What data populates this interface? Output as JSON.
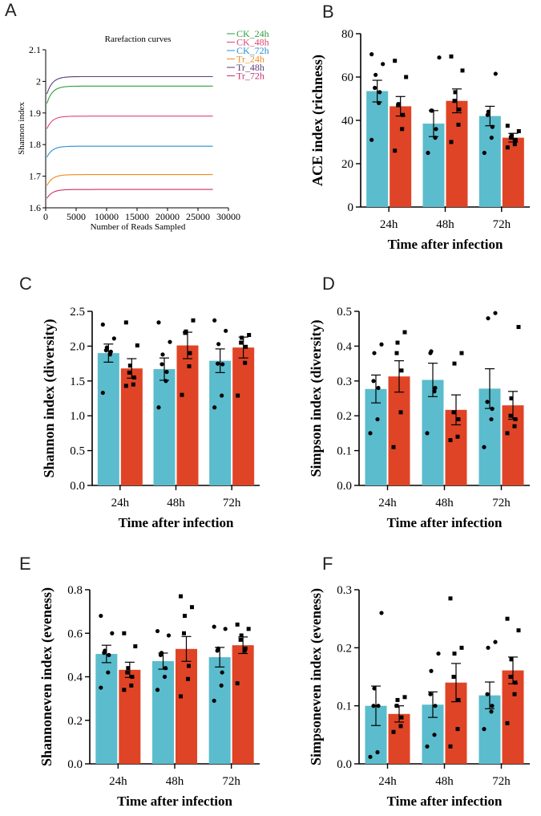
{
  "colors": {
    "ck": "#5bbccd",
    "tr": "#e04426",
    "axis": "#000000"
  },
  "chart_data": [
    {
      "panel": "A",
      "type": "line",
      "title": "Rarefaction curves",
      "xlabel": "Number of Reads Sampled",
      "ylabel": "Shannon index",
      "xlim": [
        0,
        30000
      ],
      "ylim": [
        1.6,
        2.1
      ],
      "xticks": [
        "0",
        "5000",
        "10000",
        "15000",
        "20000",
        "25000",
        "30000"
      ],
      "xtick_values": [
        0,
        5000,
        10000,
        15000,
        20000,
        25000,
        30000
      ],
      "yticks": [
        "1.6",
        "1.7",
        "1.8",
        "1.9",
        "2",
        "2.1"
      ],
      "ytick_values": [
        1.6,
        1.7,
        1.8,
        1.9,
        2.0,
        2.1
      ],
      "series": [
        {
          "name": "CK_24h",
          "color": "#2e9e3e",
          "start": 1.93,
          "plateau": 1.985,
          "x_end": 27500
        },
        {
          "name": "CK_48h",
          "color": "#e0436e",
          "start": 1.85,
          "plateau": 1.89,
          "x_end": 27500
        },
        {
          "name": "CK_72h",
          "color": "#2a8fd1",
          "start": 1.76,
          "plateau": 1.795,
          "x_end": 27500
        },
        {
          "name": "Tr_24h",
          "color": "#f08a1c",
          "start": 1.67,
          "plateau": 1.705,
          "x_end": 27500
        },
        {
          "name": "Tr_48h",
          "color": "#5a3e7a",
          "start": 1.96,
          "plateau": 2.015,
          "x_end": 27500
        },
        {
          "name": "Tr_72h",
          "color": "#c9306b",
          "start": 1.63,
          "plateau": 1.658,
          "x_end": 27500
        }
      ]
    },
    {
      "panel": "B",
      "type": "bar",
      "xlabel": "Time after infection",
      "ylabel": "ACE index (richness)",
      "categories": [
        "24h",
        "48h",
        "72h"
      ],
      "ylim": [
        0,
        80
      ],
      "yticks": [
        "0",
        "20",
        "40",
        "60",
        "80"
      ],
      "ytick_values": [
        0,
        20,
        40,
        60,
        80
      ],
      "series": [
        {
          "name": "CK",
          "values": [
            53.5,
            38.5,
            42
          ],
          "errors": [
            5,
            6,
            4.5
          ],
          "points": [
            [
              31,
              48,
              53,
              55,
              61,
              66,
              70.5
            ],
            [
              25,
              32,
              36,
              44.5,
              44.5,
              69
            ],
            [
              25,
              32,
              37,
              42.5,
              44,
              61.5
            ]
          ]
        },
        {
          "name": "Tr",
          "values": [
            46.5,
            49,
            32
          ],
          "errors": [
            4.5,
            5.5,
            2
          ],
          "points": [
            [
              26,
              36,
              42.5,
              47,
              47.5,
              60,
              67.5
            ],
            [
              30,
              38,
              45,
              49,
              53,
              63,
              69.5
            ],
            [
              27.5,
              29,
              31,
              32,
              33,
              35,
              37.5
            ]
          ]
        }
      ]
    },
    {
      "panel": "C",
      "type": "bar",
      "xlabel": "Time after infection",
      "ylabel": "Shannon index (diversity)",
      "categories": [
        "24h",
        "48h",
        "72h"
      ],
      "ylim": [
        0,
        2.5
      ],
      "yticks": [
        "0.0",
        "0.5",
        "1.0",
        "1.5",
        "2.0",
        "2.5"
      ],
      "ytick_values": [
        0,
        0.5,
        1.0,
        1.5,
        2.0,
        2.5
      ],
      "series": [
        {
          "name": "CK",
          "values": [
            1.9,
            1.67,
            1.79
          ],
          "errors": [
            0.13,
            0.16,
            0.17
          ],
          "points": [
            [
              1.33,
              1.88,
              1.92,
              1.94,
              1.98,
              2.11,
              2.31
            ],
            [
              1.12,
              1.5,
              1.63,
              1.74,
              1.88,
              2.06,
              2.34
            ],
            [
              1.12,
              1.29,
              1.74,
              1.75,
              2.03,
              2.22,
              2.37
            ]
          ]
        },
        {
          "name": "Tr",
          "values": [
            1.68,
            2.01,
            1.98
          ],
          "errors": [
            0.14,
            0.19,
            0.15
          ],
          "points": [
            [
              1.43,
              1.45,
              1.55,
              1.62,
              1.72,
              2.01,
              2.34
            ],
            [
              1.3,
              1.71,
              1.9,
              2.19,
              2.21,
              2.37
            ],
            [
              1.29,
              1.76,
              1.99,
              2.05,
              2.12,
              2.16
            ]
          ]
        }
      ]
    },
    {
      "panel": "D",
      "type": "bar",
      "xlabel": "Time after infection",
      "ylabel": "Simpson index (diversity)",
      "categories": [
        "24h",
        "48h",
        "72h"
      ],
      "ylim": [
        0,
        0.5
      ],
      "yticks": [
        "0.0",
        "0.1",
        "0.2",
        "0.3",
        "0.4",
        "0.5"
      ],
      "ytick_values": [
        0,
        0.1,
        0.2,
        0.3,
        0.4,
        0.5
      ],
      "series": [
        {
          "name": "CK",
          "values": [
            0.277,
            0.303,
            0.278
          ],
          "errors": [
            0.04,
            0.048,
            0.057
          ],
          "points": [
            [
              0.15,
              0.19,
              0.28,
              0.3,
              0.38,
              0.405
            ],
            [
              0.15,
              0.27,
              0.28,
              0.38,
              0.385
            ],
            [
              0.11,
              0.19,
              0.22,
              0.24,
              0.48,
              0.495
            ]
          ]
        },
        {
          "name": "Tr",
          "values": [
            0.313,
            0.217,
            0.23
          ],
          "errors": [
            0.045,
            0.043,
            0.04
          ],
          "points": [
            [
              0.11,
              0.21,
              0.33,
              0.38,
              0.41,
              0.44
            ],
            [
              0.13,
              0.14,
              0.19,
              0.21,
              0.35,
              0.38
            ],
            [
              0.15,
              0.17,
              0.19,
              0.2,
              0.25,
              0.455
            ]
          ]
        }
      ]
    },
    {
      "panel": "E",
      "type": "bar",
      "xlabel": "Time after infection",
      "ylabel": "Shannoneven index (eveness)",
      "categories": [
        "24h",
        "48h",
        "72h"
      ],
      "ylim": [
        0,
        0.8
      ],
      "yticks": [
        "0.0",
        "0.2",
        "0.4",
        "0.6",
        "0.8"
      ],
      "ytick_values": [
        0,
        0.2,
        0.4,
        0.6,
        0.8
      ],
      "series": [
        {
          "name": "CK",
          "values": [
            0.505,
            0.472,
            0.49
          ],
          "errors": [
            0.04,
            0.037,
            0.045
          ],
          "points": [
            [
              0.35,
              0.42,
              0.5,
              0.51,
              0.52,
              0.6,
              0.68
            ],
            [
              0.34,
              0.4,
              0.44,
              0.5,
              0.51,
              0.59,
              0.61
            ],
            [
              0.29,
              0.36,
              0.42,
              0.52,
              0.53,
              0.62,
              0.63
            ]
          ]
        },
        {
          "name": "Tr",
          "values": [
            0.432,
            0.528,
            0.545
          ],
          "errors": [
            0.035,
            0.057,
            0.038
          ],
          "points": [
            [
              0.34,
              0.36,
              0.4,
              0.42,
              0.44,
              0.54,
              0.6
            ],
            [
              0.31,
              0.39,
              0.45,
              0.6,
              0.68,
              0.72,
              0.77
            ],
            [
              0.37,
              0.52,
              0.53,
              0.57,
              0.59,
              0.62,
              0.64
            ]
          ]
        }
      ]
    },
    {
      "panel": "F",
      "type": "bar",
      "xlabel": "Time after infection",
      "ylabel": "Simpsoneven index (eveness)",
      "categories": [
        "24h",
        "48h",
        "72h"
      ],
      "ylim": [
        0,
        0.3
      ],
      "yticks": [
        "0.0",
        "0.1",
        "0.2",
        "0.3"
      ],
      "ytick_values": [
        0,
        0.1,
        0.2,
        0.3
      ],
      "series": [
        {
          "name": "CK",
          "values": [
            0.1,
            0.102,
            0.118
          ],
          "errors": [
            0.034,
            0.022,
            0.023
          ],
          "points": [
            [
              0.012,
              0.02,
              0.1,
              0.1,
              0.13,
              0.26
            ],
            [
              0.03,
              0.05,
              0.1,
              0.12,
              0.16,
              0.19
            ],
            [
              0.06,
              0.09,
              0.1,
              0.12,
              0.2,
              0.21
            ]
          ]
        },
        {
          "name": "Tr",
          "values": [
            0.086,
            0.14,
            0.161
          ],
          "errors": [
            0.014,
            0.033,
            0.023
          ],
          "points": [
            [
              0.055,
              0.065,
              0.08,
              0.1,
              0.11,
              0.115
            ],
            [
              0.03,
              0.06,
              0.11,
              0.15,
              0.19,
              0.2,
              0.285
            ],
            [
              0.07,
              0.12,
              0.14,
              0.15,
              0.18,
              0.23,
              0.25
            ]
          ]
        }
      ]
    }
  ]
}
